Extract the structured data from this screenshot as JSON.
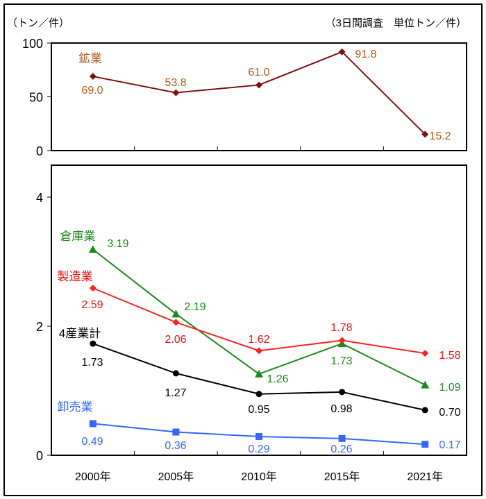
{
  "chart_data": [
    {
      "type": "line",
      "panel": "top",
      "ylabel": "（トン／件）",
      "note": "（3日間調査　単位トン／件）",
      "ylim": [
        0,
        100
      ],
      "yticks": [
        "0",
        "50",
        "100"
      ],
      "categories": [
        "2000年",
        "2005年",
        "2010年",
        "2015年",
        "2021年"
      ],
      "series": [
        {
          "name": "鉱業",
          "color": "#7f1010",
          "label_color": "#b05a1a",
          "marker": "diamond",
          "values": [
            69.0,
            53.8,
            61.0,
            91.8,
            15.2
          ],
          "labels": [
            "69.0",
            "53.8",
            "61.0",
            "91.8",
            "15.2"
          ]
        }
      ]
    },
    {
      "type": "line",
      "panel": "bottom",
      "ylim": [
        0,
        4.5
      ],
      "yticks": [
        "0",
        "2",
        "4"
      ],
      "categories": [
        "2000年",
        "2005年",
        "2010年",
        "2015年",
        "2021年"
      ],
      "series": [
        {
          "name": "倉庫業",
          "color": "#1a8a1a",
          "label_color": "#1a8a1a",
          "marker": "triangle",
          "values": [
            3.19,
            2.19,
            1.26,
            1.73,
            1.09
          ],
          "labels": [
            "3.19",
            "2.19",
            "1.26",
            "1.73",
            "1.09"
          ]
        },
        {
          "name": "製造業",
          "color": "#ff2020",
          "label_color": "#ee1111",
          "marker": "diamond",
          "values": [
            2.59,
            2.06,
            1.62,
            1.78,
            1.58
          ],
          "labels": [
            "2.59",
            "2.06",
            "1.62",
            "1.78",
            "1.58"
          ]
        },
        {
          "name": "4産業計",
          "color": "#000000",
          "label_color": "#000000",
          "marker": "circle",
          "values": [
            1.73,
            1.27,
            0.95,
            0.98,
            0.7
          ],
          "labels": [
            "1.73",
            "1.27",
            "0.95",
            "0.98",
            "0.70"
          ]
        },
        {
          "name": "卸売業",
          "color": "#3366ff",
          "label_color": "#3366ff",
          "marker": "square",
          "values": [
            0.49,
            0.36,
            0.29,
            0.26,
            0.17
          ],
          "labels": [
            "0.49",
            "0.36",
            "0.29",
            "0.26",
            "0.17"
          ]
        }
      ]
    }
  ]
}
